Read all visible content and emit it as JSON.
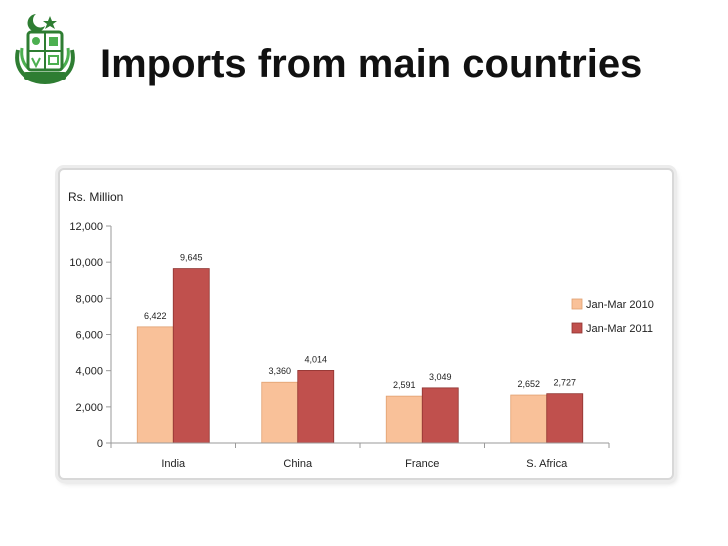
{
  "slide": {
    "title": "Imports from main countries"
  },
  "colors": {
    "series_2010": "#f9c199",
    "series_2011": "#c0504d",
    "axis": "#9a9a9a",
    "logo_green": "#2e7d32"
  },
  "chart_data": {
    "type": "bar",
    "ylabel": "Rs. Million",
    "xlabel": "",
    "categories": [
      "India",
      "China",
      "France",
      "S. Africa"
    ],
    "series": [
      {
        "name": "Jan-Mar 2010",
        "values": [
          6422,
          3360,
          2591,
          2652
        ],
        "labels": [
          "6,422",
          "3,360",
          "2,591",
          "2,652"
        ]
      },
      {
        "name": "Jan-Mar 2011",
        "values": [
          9645,
          4014,
          3049,
          2727
        ],
        "labels": [
          "9,645",
          "4,014",
          "3,049",
          "2,727"
        ]
      }
    ],
    "ylim": [
      0,
      12000
    ],
    "yticks": [
      0,
      2000,
      4000,
      6000,
      8000,
      10000,
      12000
    ],
    "ytick_labels": [
      "0",
      "2,000",
      "4,000",
      "6,000",
      "8,000",
      "10,000",
      "12,000"
    ],
    "grid": false,
    "legend": "right"
  }
}
